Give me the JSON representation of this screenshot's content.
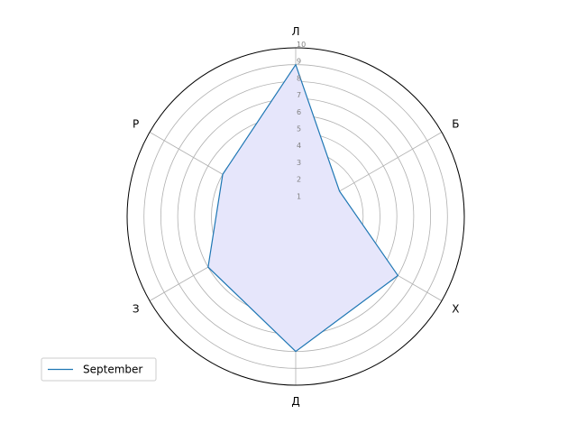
{
  "chart_data": {
    "type": "radar",
    "title": "",
    "axes": [
      "Л",
      "Б",
      "Х",
      "Д",
      "З",
      "Р"
    ],
    "rlim": [
      0,
      10
    ],
    "r_ticks": [
      1,
      2,
      3,
      4,
      5,
      6,
      7,
      8,
      9,
      10
    ],
    "grid": true,
    "legend_position": "lower-left",
    "series": [
      {
        "name": "September",
        "values": [
          9,
          3,
          7,
          8,
          6,
          5
        ],
        "line_color": "#1f77b4",
        "fill_color": "#e6e6fb"
      }
    ]
  }
}
